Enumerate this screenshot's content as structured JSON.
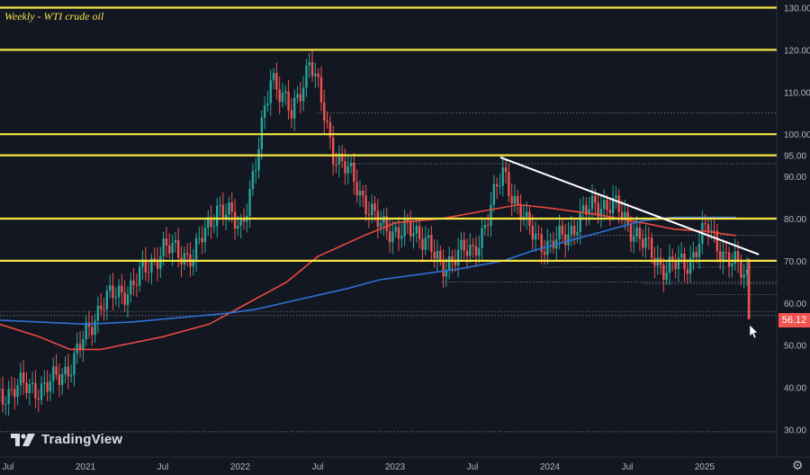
{
  "chart_data": {
    "type": "candlestick",
    "title": "Weekly - WTI crude oil",
    "y_axis": {
      "ticks": [
        "130.00",
        "120.00",
        "110.00",
        "100.00",
        "95.00",
        "90.00",
        "80.00",
        "70.00",
        "60.00",
        "50.00",
        "40.00",
        "30.00"
      ]
    },
    "x_axis": {
      "ticks": [
        "Jul",
        "2021",
        "Jul",
        "2022",
        "Jul",
        "2023",
        "Jul",
        "2024",
        "Jul",
        "2025"
      ]
    },
    "last_price": "56.12",
    "horizontal_levels": [
      130,
      120,
      100,
      95,
      80,
      70
    ],
    "trendline": {
      "from": [
        2023.68,
        94.5
      ],
      "to": [
        2025.35,
        71.5
      ]
    },
    "series": [
      {
        "name": "",
        "color": "#e8493f",
        "points": [
          [
            2020.4,
            55.5
          ],
          [
            2020.7,
            52
          ],
          [
            2020.9,
            49
          ],
          [
            2021.1,
            49
          ],
          [
            2021.5,
            52
          ],
          [
            2021.8,
            55
          ],
          [
            2022.0,
            59
          ],
          [
            2022.3,
            65
          ],
          [
            2022.5,
            71
          ],
          [
            2022.8,
            76
          ],
          [
            2023.0,
            79
          ],
          [
            2023.3,
            80
          ],
          [
            2023.6,
            82
          ],
          [
            2023.8,
            83.3
          ],
          [
            2024.0,
            82.5
          ],
          [
            2024.3,
            81
          ],
          [
            2024.6,
            79
          ],
          [
            2024.8,
            77.5
          ],
          [
            2025.0,
            77
          ],
          [
            2025.2,
            76
          ]
        ]
      },
      {
        "name": "",
        "color": "#2f6fd6",
        "points": [
          [
            2020.4,
            56
          ],
          [
            2020.7,
            55.5
          ],
          [
            2021.0,
            55
          ],
          [
            2021.3,
            55.5
          ],
          [
            2021.6,
            56.5
          ],
          [
            2021.9,
            57.5
          ],
          [
            2022.1,
            58.5
          ],
          [
            2022.4,
            61
          ],
          [
            2022.7,
            63.5
          ],
          [
            2022.9,
            65.5
          ],
          [
            2023.1,
            66.5
          ],
          [
            2023.4,
            68
          ],
          [
            2023.7,
            70
          ],
          [
            2023.9,
            72.5
          ],
          [
            2024.1,
            74.5
          ],
          [
            2024.4,
            77.5
          ],
          [
            2024.6,
            79.5
          ],
          [
            2024.8,
            80.3
          ],
          [
            2025.1,
            80.3
          ],
          [
            2025.2,
            80.3
          ]
        ]
      }
    ],
    "colors": {
      "up": "#26a69a",
      "down": "#ef5350",
      "level": "#f5e642"
    }
  },
  "brand": "TradingView"
}
